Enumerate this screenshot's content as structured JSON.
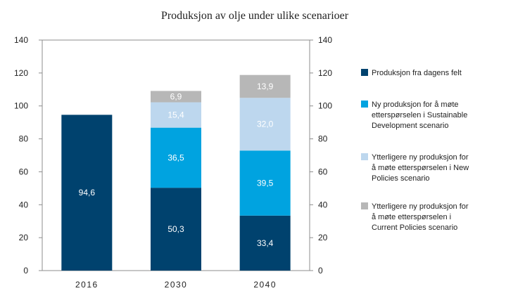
{
  "chart_data": {
    "type": "bar",
    "stacked": true,
    "title": "Produksjon av olje under ulike scenarioer",
    "xlabel": "",
    "ylabel": "",
    "ylim": [
      0,
      140
    ],
    "yticks": [
      "0",
      "20",
      "40",
      "60",
      "80",
      "100",
      "120",
      "140"
    ],
    "categories": [
      "2016",
      "2030",
      "2040"
    ],
    "grid": false,
    "secondary_axis": true,
    "legend_position": "right",
    "series": [
      {
        "name": "Produksjon fra dagens felt",
        "legend_lines": [
          "Produksjon fra dagens felt"
        ],
        "color": "#00426E",
        "label_color": "#ffffff",
        "values": [
          94.6,
          50.3,
          33.4
        ],
        "labels": [
          "94,6",
          "50,3",
          "33,4"
        ]
      },
      {
        "name": "Ny produksjon for å møte etterspørselen i Sustainable Development scenario",
        "legend_lines": [
          "Ny produksjon for å møte",
          "etterspørselen i Sustainable",
          "Development scenario"
        ],
        "color": "#00A3E0",
        "label_color": "#ffffff",
        "values": [
          null,
          36.5,
          39.5
        ],
        "labels": [
          "",
          "36,5",
          "39,5"
        ]
      },
      {
        "name": "Ytterligere ny produksjon for å møte etterspørselen i New Policies scenario",
        "legend_lines": [
          "Ytterligere ny produksjon for",
          "å møte etterspørselen i New",
          "Policies scenario"
        ],
        "color": "#BDD7EE",
        "label_color": "#ffffff",
        "values": [
          null,
          15.4,
          32.0
        ],
        "labels": [
          "",
          "15,4",
          "32,0"
        ]
      },
      {
        "name": "Ytterligere ny produksjon for å møte etterspørselen i Current Policies scenario",
        "legend_lines": [
          "Ytterligere ny produksjon for",
          "å møte etterspørselen i",
          "Current Policies scenario"
        ],
        "color": "#B7B7B7",
        "label_color": "#ffffff",
        "values": [
          null,
          6.9,
          13.9
        ],
        "labels": [
          "",
          "6,9",
          "13,9"
        ]
      }
    ]
  }
}
